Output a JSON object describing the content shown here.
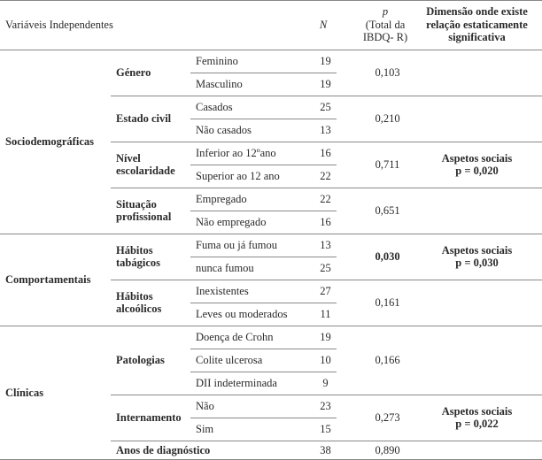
{
  "header": {
    "variables": "Variáveis Independentes",
    "n": "N",
    "p": [
      "p",
      "(Total da",
      "IBDQ- R)"
    ],
    "dimension": [
      "Dimensão onde existe",
      "relação estaticamente",
      "significativa"
    ]
  },
  "groups": [
    {
      "label": "Sociodemográficas",
      "subgroups": [
        {
          "label": "Género",
          "rows": [
            {
              "category": "Feminino",
              "n": 19
            },
            {
              "category": "Masculino",
              "n": 19
            }
          ],
          "p": "0,103"
        },
        {
          "label": "Estado civil",
          "rows": [
            {
              "category": "Casados",
              "n": 25
            },
            {
              "category": "Não casados",
              "n": 13
            }
          ],
          "p": "0,210"
        },
        {
          "label": "Nível escolaridade",
          "rows": [
            {
              "category": "Inferior ao 12ºano",
              "n": 16
            },
            {
              "category": "Superior ao 12 ano",
              "n": 22
            }
          ],
          "p": "0,711",
          "dimension": [
            "Aspetos sociais",
            "p = 0,020"
          ]
        },
        {
          "label": "Situação profissional",
          "rows": [
            {
              "category": "Empregado",
              "n": 22
            },
            {
              "category": "Não empregado",
              "n": 16
            }
          ],
          "p": "0,651"
        }
      ]
    },
    {
      "label": "Comportamentais",
      "subgroups": [
        {
          "label": "Hábitos tabágicos",
          "rows": [
            {
              "category": "Fuma ou já fumou",
              "n": 13
            },
            {
              "category": "nunca fumou",
              "n": 25
            }
          ],
          "p": "0,030",
          "dimension": [
            "Aspetos sociais",
            "p = 0,030"
          ]
        },
        {
          "label": "Hábitos alcoólicos",
          "rows": [
            {
              "category": "Inexistentes",
              "n": 27
            },
            {
              "category": "Leves ou moderados",
              "n": 11
            }
          ],
          "p": "0,161"
        }
      ]
    },
    {
      "label": "Clínicas",
      "subgroups": [
        {
          "label": "Patologias",
          "rows": [
            {
              "category": "Doença de Crohn",
              "n": 19
            },
            {
              "category": "Colite ulcerosa",
              "n": 10
            },
            {
              "category": "DII indeterminada",
              "n": 9
            }
          ],
          "p": "0,166"
        },
        {
          "label": "Internamento",
          "rows": [
            {
              "category": "Não",
              "n": 23
            },
            {
              "category": "Sim",
              "n": 15
            }
          ],
          "p": "0,273",
          "dimension": [
            "Aspetos sociais",
            "p = 0,022"
          ]
        },
        {
          "label": "Anos de diagnóstico",
          "n": 38,
          "p": "0,890"
        }
      ]
    }
  ]
}
